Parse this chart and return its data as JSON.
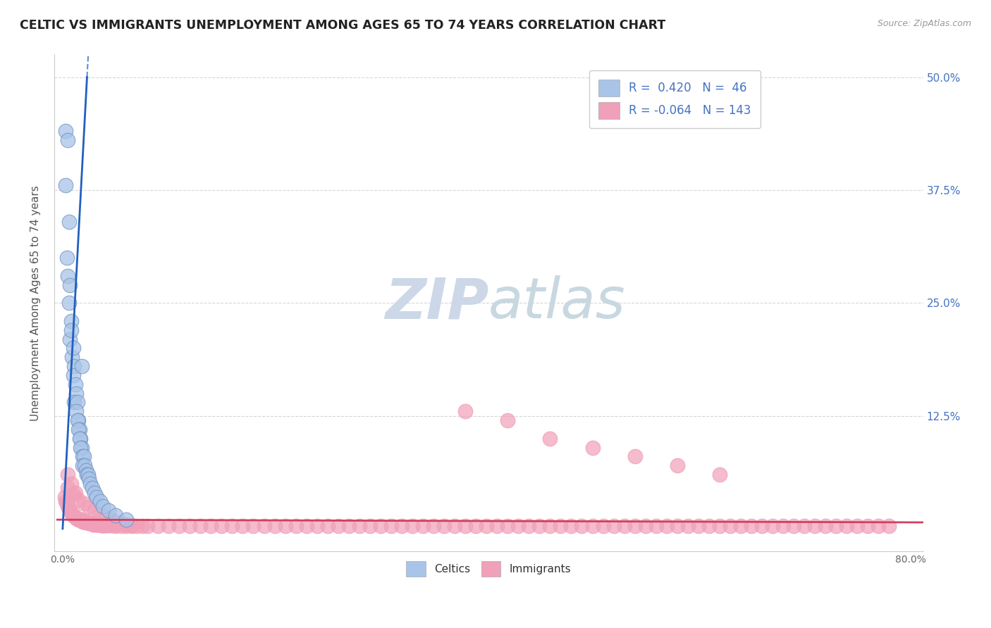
{
  "title": "CELTIC VS IMMIGRANTS UNEMPLOYMENT AMONG AGES 65 TO 74 YEARS CORRELATION CHART",
  "source": "Source: ZipAtlas.com",
  "ylabel": "Unemployment Among Ages 65 to 74 years",
  "xlim": [
    -0.008,
    0.812
  ],
  "ylim": [
    -0.025,
    0.525
  ],
  "xticks": [
    0.0,
    0.8
  ],
  "xticklabels": [
    "0.0%",
    "80.0%"
  ],
  "ytick_right_labels": [
    "50.0%",
    "37.5%",
    "25.0%",
    "12.5%"
  ],
  "ytick_right_vals": [
    0.5,
    0.375,
    0.25,
    0.125
  ],
  "celtics_R": 0.42,
  "celtics_N": 46,
  "immigrants_R": -0.064,
  "immigrants_N": 143,
  "celtics_color": "#a8c4e8",
  "immigrants_color": "#f0a0b8",
  "celtics_line_color": "#2060c0",
  "immigrants_line_color": "#d04060",
  "background_color": "#ffffff",
  "grid_color": "#cccccc",
  "title_color": "#222222",
  "watermark_text": "ZIPatlas",
  "watermark_color": "#ccd8e8",
  "legend_label_celtics": "Celtics",
  "legend_label_immigrants": "Immigrants",
  "celtics_x": [
    0.003,
    0.005,
    0.003,
    0.006,
    0.004,
    0.005,
    0.007,
    0.006,
    0.008,
    0.007,
    0.008,
    0.009,
    0.01,
    0.011,
    0.01,
    0.012,
    0.013,
    0.011,
    0.014,
    0.013,
    0.015,
    0.014,
    0.016,
    0.015,
    0.017,
    0.016,
    0.018,
    0.017,
    0.019,
    0.02,
    0.019,
    0.021,
    0.022,
    0.023,
    0.024,
    0.025,
    0.026,
    0.028,
    0.03,
    0.032,
    0.035,
    0.038,
    0.043,
    0.05,
    0.06,
    0.018
  ],
  "celtics_y": [
    0.44,
    0.43,
    0.38,
    0.34,
    0.3,
    0.28,
    0.27,
    0.25,
    0.23,
    0.21,
    0.22,
    0.19,
    0.2,
    0.18,
    0.17,
    0.16,
    0.15,
    0.14,
    0.14,
    0.13,
    0.12,
    0.12,
    0.11,
    0.11,
    0.1,
    0.1,
    0.09,
    0.09,
    0.08,
    0.08,
    0.07,
    0.07,
    0.065,
    0.06,
    0.06,
    0.055,
    0.05,
    0.045,
    0.04,
    0.035,
    0.03,
    0.025,
    0.02,
    0.015,
    0.01,
    0.18
  ],
  "immigrants_x": [
    0.002,
    0.003,
    0.004,
    0.005,
    0.006,
    0.007,
    0.008,
    0.009,
    0.01,
    0.011,
    0.012,
    0.013,
    0.014,
    0.015,
    0.016,
    0.017,
    0.018,
    0.019,
    0.02,
    0.021,
    0.022,
    0.023,
    0.024,
    0.025,
    0.026,
    0.027,
    0.028,
    0.029,
    0.03,
    0.031,
    0.032,
    0.033,
    0.034,
    0.035,
    0.036,
    0.037,
    0.038,
    0.039,
    0.04,
    0.042,
    0.044,
    0.046,
    0.048,
    0.05,
    0.055,
    0.06,
    0.065,
    0.07,
    0.075,
    0.08,
    0.09,
    0.1,
    0.11,
    0.12,
    0.13,
    0.14,
    0.15,
    0.16,
    0.17,
    0.18,
    0.19,
    0.2,
    0.21,
    0.22,
    0.23,
    0.24,
    0.25,
    0.26,
    0.27,
    0.28,
    0.29,
    0.3,
    0.31,
    0.32,
    0.33,
    0.34,
    0.35,
    0.36,
    0.37,
    0.38,
    0.39,
    0.4,
    0.41,
    0.42,
    0.43,
    0.44,
    0.45,
    0.46,
    0.47,
    0.48,
    0.49,
    0.5,
    0.51,
    0.52,
    0.53,
    0.54,
    0.55,
    0.56,
    0.57,
    0.58,
    0.59,
    0.6,
    0.61,
    0.62,
    0.63,
    0.64,
    0.65,
    0.66,
    0.67,
    0.68,
    0.69,
    0.7,
    0.71,
    0.72,
    0.73,
    0.74,
    0.75,
    0.76,
    0.77,
    0.78,
    0.005,
    0.01,
    0.015,
    0.02,
    0.025,
    0.03,
    0.035,
    0.04,
    0.045,
    0.05,
    0.055,
    0.06,
    0.065,
    0.005,
    0.008,
    0.012,
    0.38,
    0.42,
    0.46,
    0.5,
    0.54,
    0.58,
    0.62
  ],
  "immigrants_y": [
    0.035,
    0.03,
    0.028,
    0.025,
    0.022,
    0.02,
    0.018,
    0.016,
    0.015,
    0.014,
    0.013,
    0.012,
    0.011,
    0.01,
    0.01,
    0.01,
    0.01,
    0.008,
    0.008,
    0.008,
    0.007,
    0.007,
    0.007,
    0.006,
    0.006,
    0.006,
    0.006,
    0.005,
    0.005,
    0.005,
    0.005,
    0.005,
    0.005,
    0.005,
    0.004,
    0.004,
    0.004,
    0.004,
    0.004,
    0.004,
    0.004,
    0.004,
    0.004,
    0.003,
    0.003,
    0.003,
    0.003,
    0.003,
    0.003,
    0.003,
    0.003,
    0.003,
    0.003,
    0.003,
    0.003,
    0.003,
    0.003,
    0.003,
    0.003,
    0.003,
    0.003,
    0.003,
    0.003,
    0.003,
    0.003,
    0.003,
    0.003,
    0.003,
    0.003,
    0.003,
    0.003,
    0.003,
    0.003,
    0.003,
    0.003,
    0.003,
    0.003,
    0.003,
    0.003,
    0.003,
    0.003,
    0.003,
    0.003,
    0.003,
    0.003,
    0.003,
    0.003,
    0.003,
    0.003,
    0.003,
    0.003,
    0.003,
    0.003,
    0.003,
    0.003,
    0.003,
    0.003,
    0.003,
    0.003,
    0.003,
    0.003,
    0.003,
    0.003,
    0.003,
    0.003,
    0.003,
    0.003,
    0.003,
    0.003,
    0.003,
    0.003,
    0.003,
    0.003,
    0.003,
    0.003,
    0.003,
    0.003,
    0.003,
    0.003,
    0.003,
    0.045,
    0.038,
    0.032,
    0.028,
    0.024,
    0.02,
    0.016,
    0.013,
    0.01,
    0.008,
    0.006,
    0.005,
    0.004,
    0.06,
    0.05,
    0.04,
    0.13,
    0.12,
    0.1,
    0.09,
    0.08,
    0.07,
    0.06
  ],
  "celtics_trendline_x": [
    0.0,
    0.025
  ],
  "celtics_trendline_y": [
    0.0,
    0.5
  ],
  "immigrants_trendline_x": [
    -0.005,
    0.812
  ],
  "immigrants_trendline_y": [
    0.01,
    0.007
  ]
}
